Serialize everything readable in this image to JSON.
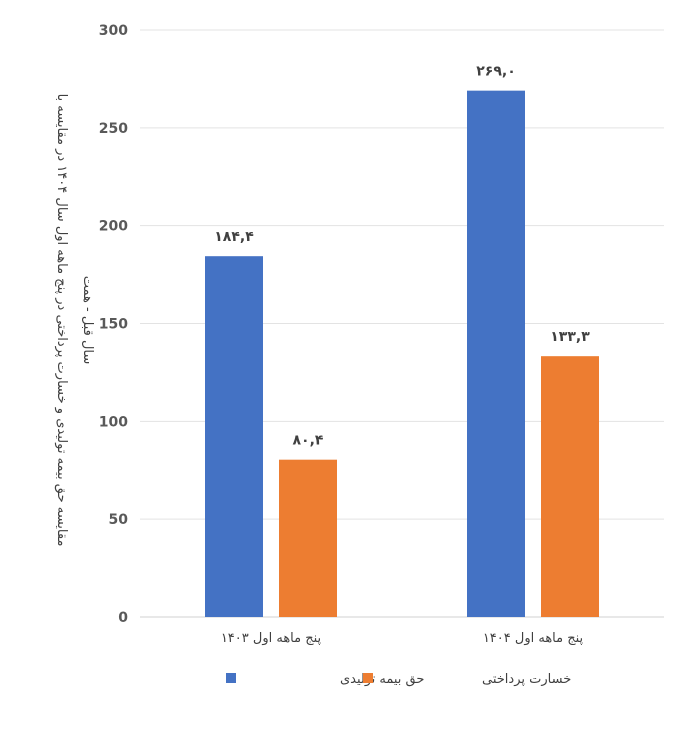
{
  "chart_data": {
    "type": "bar",
    "title": "",
    "xlabel": "",
    "ylabel_lines": [
      "مقایسه حق بیمه تولیدی و خسارت پرداختی در پنج ماهه اول سال ۱۴۰۴ در مقایسه با",
      "سال قبل - همت"
    ],
    "categories": [
      "پنج ماهه اول ۱۴۰۳",
      "پنج ماهه اول ۱۴۰۴"
    ],
    "series": [
      {
        "name": "حق بیمه تولیدی",
        "color": "#4472C4",
        "values": [
          184.4,
          269.0
        ],
        "labels": [
          "۱۸۴,۴",
          "۲۶۹,۰"
        ]
      },
      {
        "name": "خسارت پرداختی",
        "color": "#ED7D31",
        "values": [
          80.4,
          133.3
        ],
        "labels": [
          "۸۰,۴",
          "۱۳۳,۳"
        ]
      }
    ],
    "ylim": [
      0,
      300
    ],
    "yticks": [
      0,
      50,
      100,
      150,
      200,
      250,
      300
    ],
    "grid": true,
    "legend_position": "bottom"
  }
}
